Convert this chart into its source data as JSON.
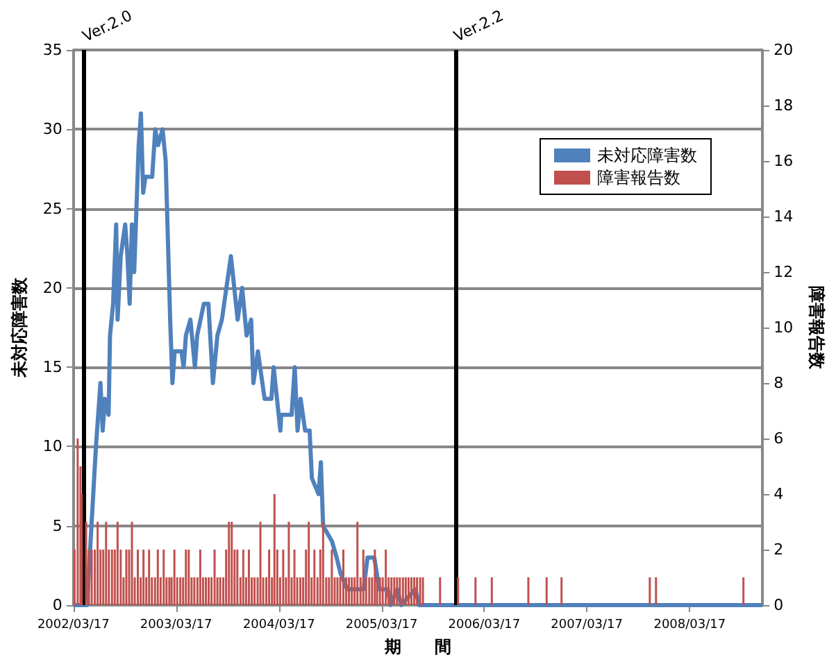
{
  "chart_data": {
    "type": "line",
    "xlabel": "期　　間",
    "ylabel": "未対応障害数",
    "y2label": "障害報告数",
    "xlim": [
      "2002-03-17",
      "2008-12-01"
    ],
    "xticks": [
      {
        "value": "2002-03-17",
        "label": "2002/03/17"
      },
      {
        "value": "2003-03-17",
        "label": "2003/03/17"
      },
      {
        "value": "2004-03-17",
        "label": "2004/03/17"
      },
      {
        "value": "2005-03-17",
        "label": "2005/03/17"
      },
      {
        "value": "2006-03-17",
        "label": "2006/03/17"
      },
      {
        "value": "2007-03-17",
        "label": "2007/03/17"
      },
      {
        "value": "2008-03-17",
        "label": "2008/03/17"
      }
    ],
    "ylim": [
      0,
      35
    ],
    "yticks": [
      0,
      5,
      10,
      15,
      20,
      25,
      30,
      35
    ],
    "y2lim": [
      0,
      20
    ],
    "y2ticks": [
      0,
      2,
      4,
      6,
      8,
      10,
      12,
      14,
      16,
      18,
      20
    ],
    "grid": "y",
    "legend": "top right",
    "ref_lines": [
      {
        "axis": "x",
        "value": "2002-04-24",
        "label": "Ver.2.0",
        "color": "#000000"
      },
      {
        "axis": "x",
        "value": "2005-12-05",
        "label": "Ver.2.2",
        "color": "#000000"
      }
    ],
    "series": [
      {
        "name": "未対応障害数",
        "color": "#4f81bd",
        "x": [
          "2002-03-17",
          "2002-05-04",
          "2002-05-20",
          "2002-06-05",
          "2002-06-21",
          "2002-06-29",
          "2002-07-07",
          "2002-07-20",
          "2002-07-23",
          "2002-07-25",
          "2002-08-05",
          "2002-08-16",
          "2002-08-21",
          "2002-09-01",
          "2002-09-17",
          "2002-09-25",
          "2002-10-03",
          "2002-10-11",
          "2002-10-19",
          "2002-11-04",
          "2002-11-12",
          "2002-11-20",
          "2002-11-28",
          "2002-12-22",
          "2003-01-02",
          "2003-01-12",
          "2003-01-28",
          "2003-02-08",
          "2003-02-16",
          "2003-02-24",
          "2003-03-04",
          "2003-03-12",
          "2003-04-05",
          "2003-04-13",
          "2003-04-21",
          "2003-05-07",
          "2003-05-23",
          "2003-05-31",
          "2003-06-24",
          "2003-07-10",
          "2003-07-26",
          "2003-08-11",
          "2003-08-27",
          "2003-09-12",
          "2003-09-28",
          "2003-10-22",
          "2003-11-07",
          "2003-11-23",
          "2003-12-09",
          "2003-12-17",
          "2004-01-02",
          "2004-01-26",
          "2004-02-19",
          "2004-02-27",
          "2004-03-22",
          "2004-03-25",
          "2004-05-01",
          "2004-05-12",
          "2004-05-22",
          "2004-06-02",
          "2004-06-18",
          "2004-07-04",
          "2004-07-12",
          "2004-08-05",
          "2004-08-13",
          "2004-08-21",
          "2004-09-22",
          "2004-10-08",
          "2004-10-22",
          "2004-11-15",
          "2005-01-12",
          "2005-01-26",
          "2005-02-19",
          "2005-03-09",
          "2005-04-08",
          "2005-04-18",
          "2005-05-12",
          "2005-05-26",
          "2005-07-15",
          "2005-07-28",
          "2008-12-01"
        ],
        "values": [
          0,
          0,
          5,
          10,
          14,
          11,
          13,
          12,
          15,
          17,
          19,
          24,
          18,
          22,
          24,
          22,
          19,
          24,
          21,
          29,
          31,
          26,
          27,
          27,
          30,
          29,
          30,
          28,
          23,
          18,
          14,
          16,
          16,
          15,
          17,
          18,
          15,
          17,
          19,
          19,
          14,
          17,
          18,
          20,
          22,
          18,
          20,
          17,
          18,
          14,
          16,
          13,
          13,
          15,
          11,
          12,
          12,
          15,
          11,
          13,
          11,
          11,
          8,
          7,
          9,
          5,
          4,
          3,
          2,
          1,
          1,
          3,
          3,
          1,
          1,
          0,
          1,
          0,
          1,
          0,
          0
        ]
      },
      {
        "name": "障害報告数",
        "type": "bar",
        "axis": "y2",
        "color": "#c0504d",
        "x": [
          "2002-03-21",
          "2002-04-01",
          "2002-04-11",
          "2002-04-15",
          "2002-05-01",
          "2002-05-11",
          "2002-05-21",
          "2002-06-01",
          "2002-06-11",
          "2002-06-21",
          "2002-07-01",
          "2002-07-11",
          "2002-07-21",
          "2002-08-01",
          "2002-08-11",
          "2002-08-21",
          "2002-09-01",
          "2002-09-11",
          "2002-09-21",
          "2002-10-01",
          "2002-10-11",
          "2002-10-21",
          "2002-11-01",
          "2002-11-11",
          "2002-11-21",
          "2002-12-01",
          "2002-12-11",
          "2002-12-21",
          "2003-01-01",
          "2003-01-11",
          "2003-01-21",
          "2003-02-01",
          "2003-02-11",
          "2003-02-21",
          "2003-03-01",
          "2003-03-11",
          "2003-03-21",
          "2003-04-01",
          "2003-04-11",
          "2003-04-21",
          "2003-05-01",
          "2003-05-11",
          "2003-05-21",
          "2003-06-01",
          "2003-06-11",
          "2003-06-21",
          "2003-07-01",
          "2003-07-11",
          "2003-07-21",
          "2003-08-01",
          "2003-08-11",
          "2003-08-21",
          "2003-09-01",
          "2003-09-11",
          "2003-09-21",
          "2003-10-01",
          "2003-10-11",
          "2003-10-21",
          "2003-11-01",
          "2003-11-11",
          "2003-11-21",
          "2003-12-01",
          "2003-12-11",
          "2003-12-21",
          "2004-01-01",
          "2004-01-11",
          "2004-01-21",
          "2004-02-01",
          "2004-02-11",
          "2004-02-21",
          "2004-03-01",
          "2004-03-11",
          "2004-03-21",
          "2004-04-01",
          "2004-04-11",
          "2004-04-21",
          "2004-05-01",
          "2004-05-11",
          "2004-05-21",
          "2004-06-01",
          "2004-06-11",
          "2004-06-21",
          "2004-07-01",
          "2004-07-11",
          "2004-07-21",
          "2004-08-01",
          "2004-08-11",
          "2004-08-21",
          "2004-09-01",
          "2004-09-11",
          "2004-09-21",
          "2004-10-01",
          "2004-10-11",
          "2004-10-21",
          "2004-11-01",
          "2004-11-11",
          "2004-11-21",
          "2004-12-01",
          "2004-12-11",
          "2004-12-21",
          "2005-01-01",
          "2005-01-11",
          "2005-01-21",
          "2005-02-01",
          "2005-02-11",
          "2005-02-21",
          "2005-03-01",
          "2005-03-11",
          "2005-03-21",
          "2005-04-01",
          "2005-04-11",
          "2005-04-21",
          "2005-05-01",
          "2005-05-11",
          "2005-05-21",
          "2005-06-01",
          "2005-06-11",
          "2005-06-21",
          "2005-07-01",
          "2005-07-11",
          "2005-07-21",
          "2005-08-01",
          "2005-08-11",
          "2005-10-11",
          "2005-12-14",
          "2006-02-14",
          "2006-04-13",
          "2006-08-21",
          "2006-10-25",
          "2006-12-17",
          "2007-10-27",
          "2007-11-18",
          "2008-09-24"
        ],
        "values": [
          2,
          6,
          5,
          4,
          3,
          2,
          2,
          2,
          3,
          2,
          2,
          3,
          2,
          2,
          2,
          3,
          2,
          1,
          2,
          2,
          3,
          1,
          2,
          1,
          2,
          1,
          2,
          1,
          1,
          2,
          1,
          2,
          1,
          1,
          1,
          2,
          1,
          1,
          1,
          2,
          2,
          1,
          1,
          1,
          2,
          1,
          1,
          1,
          1,
          2,
          1,
          1,
          1,
          2,
          3,
          3,
          2,
          2,
          1,
          2,
          1,
          2,
          1,
          1,
          1,
          3,
          1,
          1,
          2,
          1,
          4,
          2,
          1,
          2,
          1,
          3,
          1,
          2,
          1,
          1,
          1,
          2,
          3,
          1,
          2,
          1,
          2,
          3,
          1,
          1,
          2,
          1,
          1,
          1,
          2,
          1,
          1,
          1,
          1,
          3,
          1,
          2,
          1,
          1,
          1,
          2,
          1,
          1,
          1,
          2,
          1,
          1,
          1,
          1,
          1,
          1,
          1,
          1,
          1,
          1,
          1,
          1,
          1,
          1,
          1,
          1,
          1,
          1,
          1,
          1,
          1,
          1,
          1
        ]
      }
    ]
  }
}
